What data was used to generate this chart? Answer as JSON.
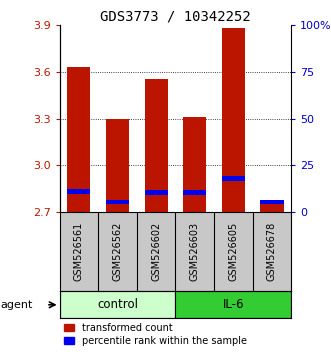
{
  "title": "GDS3773 / 10342252",
  "samples": [
    "GSM526561",
    "GSM526562",
    "GSM526602",
    "GSM526603",
    "GSM526605",
    "GSM526678"
  ],
  "transformed_count": [
    3.63,
    3.3,
    3.55,
    3.31,
    3.88,
    2.75
  ],
  "percentile_rank_y": [
    2.835,
    2.765,
    2.825,
    2.825,
    2.915,
    2.765
  ],
  "ymin": 2.7,
  "ymax": 3.9,
  "yticks": [
    2.7,
    3.0,
    3.3,
    3.6,
    3.9
  ],
  "y2_pcts": [
    0,
    25,
    50,
    75,
    100
  ],
  "bar_color": "#bb1500",
  "percentile_color": "#0000ee",
  "control_color": "#ccffcc",
  "il6_color": "#33cc33",
  "sample_bg_color": "#c8c8c8",
  "group_label_control": "control",
  "group_label_il6": "IL-6",
  "legend_tc": "transformed count",
  "legend_pr": "percentile rank within the sample",
  "bar_width": 0.6,
  "n_control": 3,
  "n_il6": 3
}
